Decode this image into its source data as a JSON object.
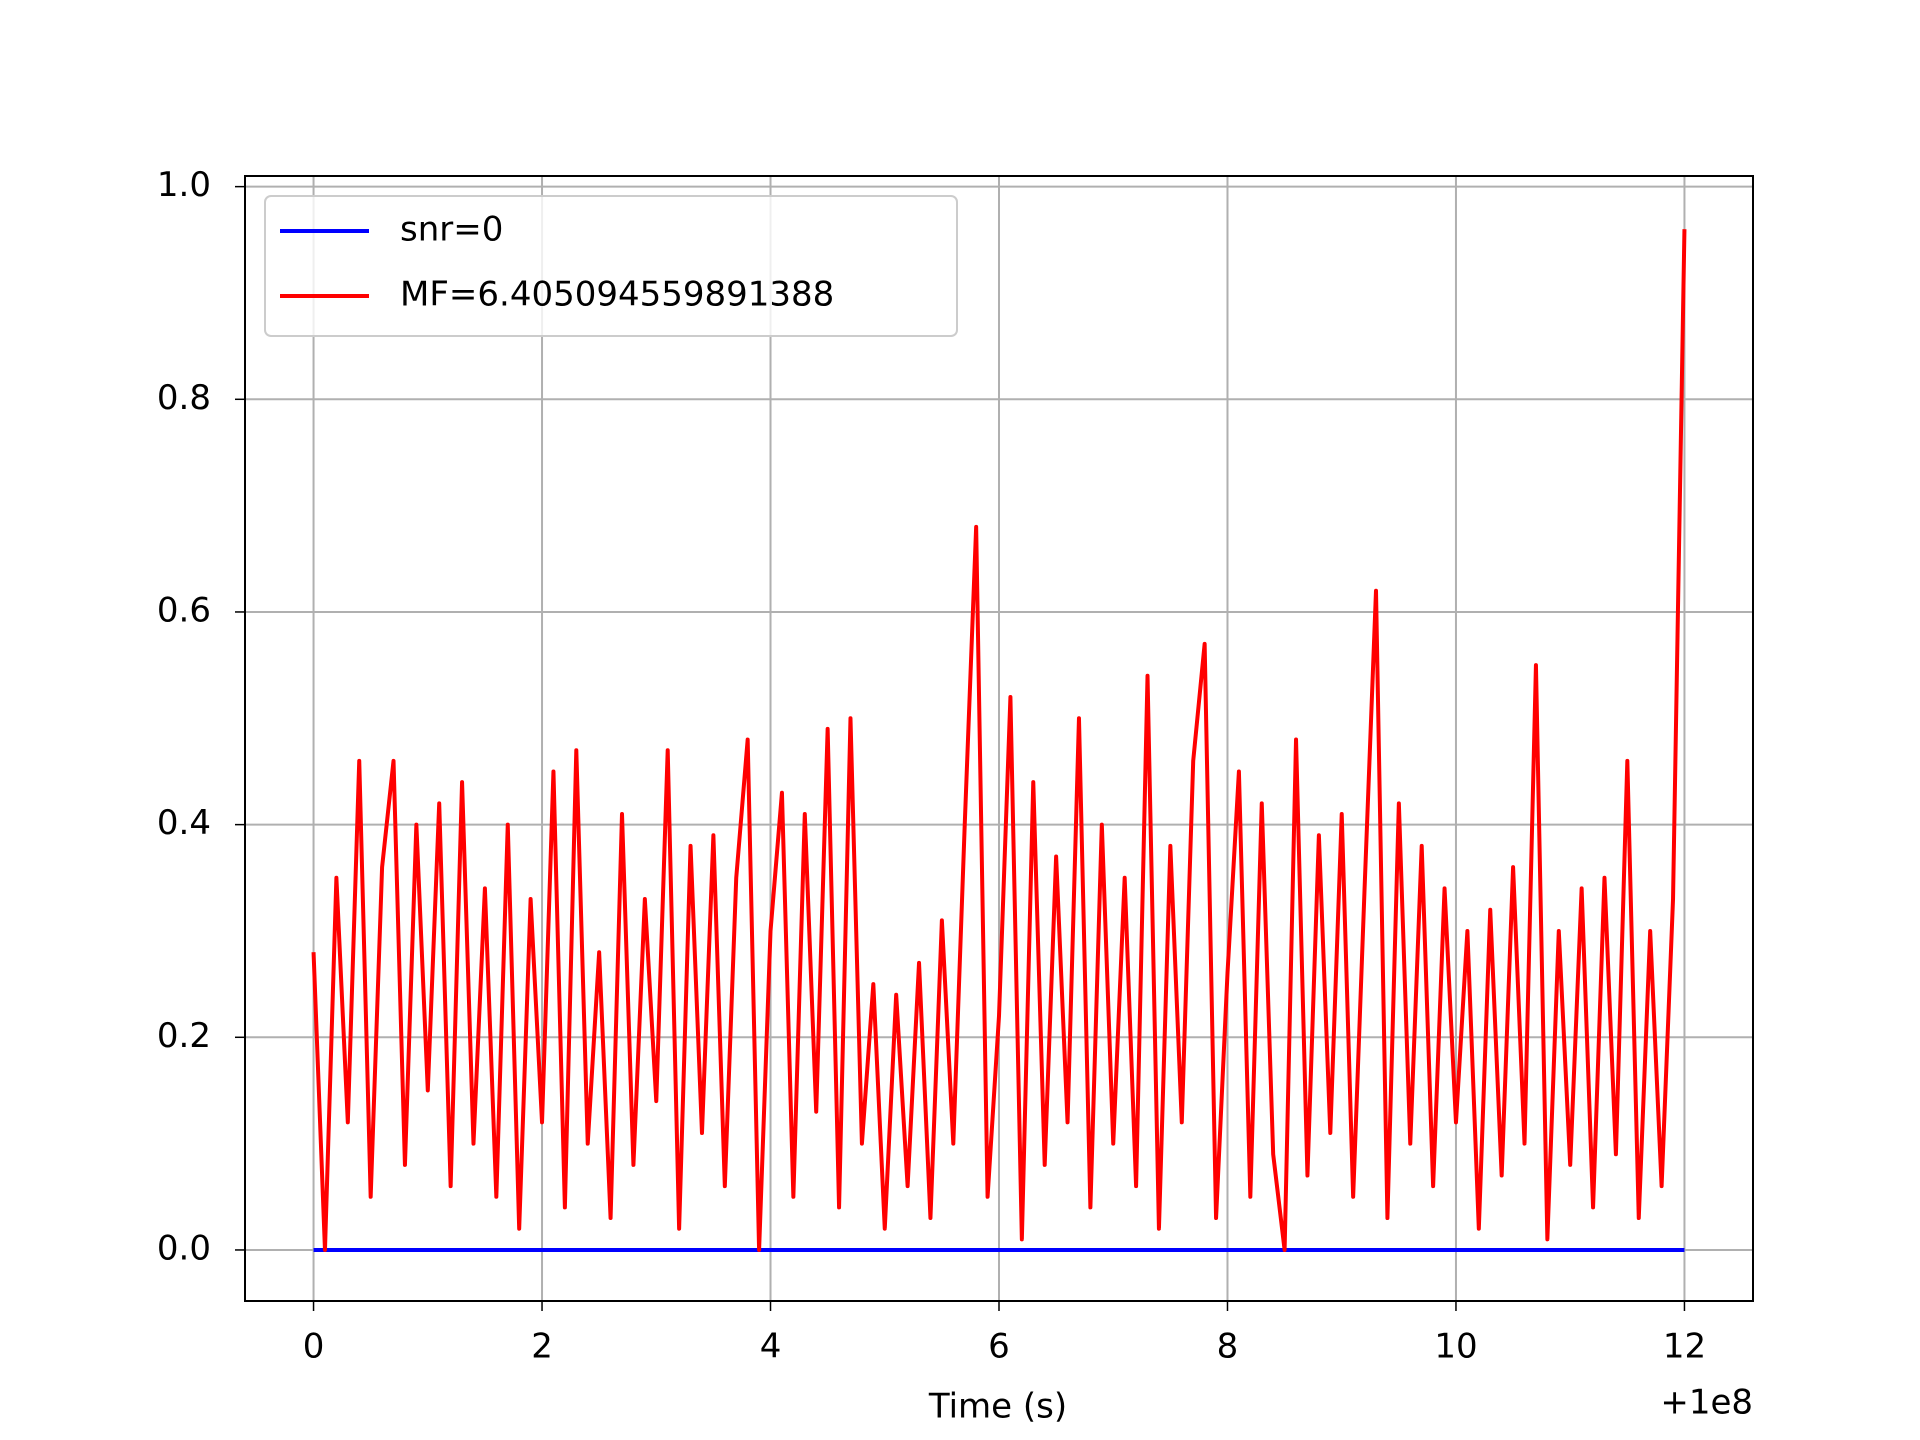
{
  "chart_data": {
    "type": "line",
    "xlabel": "Time (s)",
    "x_offset_label": "+1e8",
    "x": [
      0.0,
      0.1,
      0.2,
      0.3,
      0.4,
      0.5,
      0.6,
      0.7,
      0.8,
      0.9,
      1.0,
      1.1,
      1.2,
      1.3,
      1.4,
      1.5,
      1.6,
      1.7,
      1.8,
      1.9,
      2.0,
      2.1,
      2.2,
      2.3,
      2.4,
      2.5,
      2.6,
      2.7,
      2.8,
      2.9,
      3.0,
      3.1,
      3.2,
      3.3,
      3.4,
      3.5,
      3.6,
      3.7,
      3.8,
      3.9,
      4.0,
      4.1,
      4.2,
      4.3,
      4.4,
      4.5,
      4.6,
      4.7,
      4.8,
      4.9,
      5.0,
      5.1,
      5.2,
      5.3,
      5.4,
      5.5,
      5.6,
      5.7,
      5.8,
      5.9,
      6.0,
      6.1,
      6.2,
      6.3,
      6.4,
      6.5,
      6.6,
      6.7,
      6.8,
      6.9,
      7.0,
      7.1,
      7.2,
      7.3,
      7.4,
      7.5,
      7.6,
      7.7,
      7.8,
      7.9,
      8.0,
      8.1,
      8.2,
      8.3,
      8.4,
      8.5,
      8.6,
      8.7,
      8.8,
      8.9,
      9.0,
      9.1,
      9.2,
      9.3,
      9.4,
      9.5,
      9.6,
      9.7,
      9.8,
      9.9,
      10.0,
      10.1,
      10.2,
      10.3,
      10.4,
      10.5,
      10.6,
      10.7,
      10.8,
      10.9,
      11.0,
      11.1,
      11.2,
      11.3,
      11.4,
      11.5,
      11.6,
      11.7,
      11.8,
      11.9,
      12.0
    ],
    "series": [
      {
        "name": "snr=0",
        "color": "#0000ff",
        "values": [
          0,
          0,
          0,
          0,
          0,
          0,
          0,
          0,
          0,
          0,
          0,
          0,
          0,
          0,
          0,
          0,
          0,
          0,
          0,
          0,
          0,
          0,
          0,
          0,
          0,
          0,
          0,
          0,
          0,
          0,
          0,
          0,
          0,
          0,
          0,
          0,
          0,
          0,
          0,
          0,
          0,
          0,
          0,
          0,
          0,
          0,
          0,
          0,
          0,
          0,
          0,
          0,
          0,
          0,
          0,
          0,
          0,
          0,
          0,
          0,
          0,
          0,
          0,
          0,
          0,
          0,
          0,
          0,
          0,
          0,
          0,
          0,
          0,
          0,
          0,
          0,
          0,
          0,
          0,
          0,
          0,
          0,
          0,
          0,
          0,
          0,
          0,
          0,
          0,
          0,
          0,
          0,
          0,
          0,
          0,
          0,
          0,
          0,
          0,
          0,
          0,
          0,
          0,
          0,
          0,
          0,
          0,
          0,
          0,
          0,
          0,
          0,
          0,
          0,
          0,
          0,
          0,
          0,
          0,
          0,
          0
        ]
      },
      {
        "name": "MF=6.405094559891388",
        "color": "#ff0000",
        "values": [
          0.28,
          0.0,
          0.35,
          0.12,
          0.46,
          0.05,
          0.36,
          0.46,
          0.08,
          0.4,
          0.15,
          0.42,
          0.06,
          0.44,
          0.1,
          0.34,
          0.05,
          0.4,
          0.02,
          0.33,
          0.12,
          0.45,
          0.04,
          0.47,
          0.1,
          0.28,
          0.03,
          0.41,
          0.08,
          0.33,
          0.14,
          0.47,
          0.02,
          0.38,
          0.11,
          0.39,
          0.06,
          0.35,
          0.48,
          0.0,
          0.3,
          0.43,
          0.05,
          0.41,
          0.13,
          0.49,
          0.04,
          0.5,
          0.1,
          0.25,
          0.02,
          0.24,
          0.06,
          0.27,
          0.03,
          0.31,
          0.1,
          0.4,
          0.68,
          0.05,
          0.22,
          0.52,
          0.01,
          0.44,
          0.08,
          0.37,
          0.12,
          0.5,
          0.04,
          0.4,
          0.1,
          0.35,
          0.06,
          0.54,
          0.02,
          0.38,
          0.12,
          0.46,
          0.57,
          0.03,
          0.26,
          0.45,
          0.05,
          0.42,
          0.09,
          0.0,
          0.48,
          0.07,
          0.39,
          0.11,
          0.41,
          0.05,
          0.34,
          0.62,
          0.03,
          0.42,
          0.1,
          0.38,
          0.06,
          0.34,
          0.12,
          0.3,
          0.02,
          0.32,
          0.07,
          0.36,
          0.1,
          0.55,
          0.01,
          0.3,
          0.08,
          0.34,
          0.04,
          0.35,
          0.09,
          0.46,
          0.03,
          0.3,
          0.06,
          0.33,
          0.96
        ]
      }
    ],
    "xlim": [
      -0.6,
      12.6
    ],
    "ylim": [
      -0.048,
      1.01
    ],
    "xticks": [
      0,
      2,
      4,
      6,
      8,
      10,
      12
    ],
    "yticks": [
      {
        "value": 0,
        "label": "0.0"
      },
      {
        "value": 0.2,
        "label": "0.2"
      },
      {
        "value": 0.4,
        "label": "0.4"
      },
      {
        "value": 0.6,
        "label": "0.6"
      },
      {
        "value": 0.8,
        "label": "0.8"
      },
      {
        "value": 1,
        "label": "1.0"
      }
    ],
    "grid": true,
    "legend": "upper left"
  }
}
